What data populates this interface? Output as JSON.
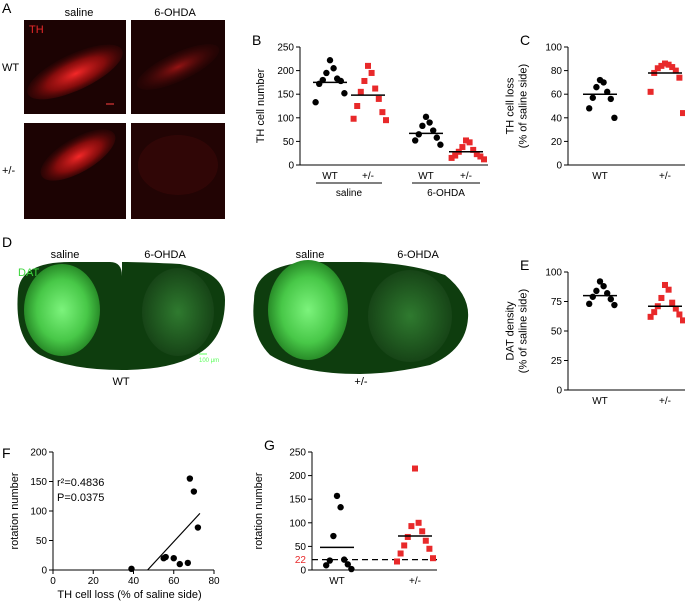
{
  "panels": {
    "A": {
      "letter": "A",
      "label_marker": "TH",
      "col_labels": [
        "saline",
        "6-OHDA"
      ],
      "row_labels": [
        "WT",
        "+/-"
      ]
    },
    "D": {
      "letter": "D",
      "label_marker": "DAT",
      "col_labels": [
        "saline",
        "6-OHDA",
        "saline",
        "6-OHDA"
      ],
      "genotype_labels": [
        "WT",
        "+/-"
      ],
      "scale_bar": "100 μm"
    }
  },
  "chart_data": [
    {
      "id": "B",
      "letter": "B",
      "type": "scatter",
      "ylabel": "TH cell number",
      "ylim": [
        0,
        250
      ],
      "yticks": [
        0,
        50,
        100,
        150,
        200,
        250
      ],
      "groups": [
        "WT",
        "+/-",
        "WT",
        "+/-"
      ],
      "group_labels": [
        "saline",
        "6-OHDA"
      ],
      "series": [
        {
          "group": "WT saline",
          "color": "#000000",
          "shape": "circle",
          "mean": 175,
          "values": [
            222,
            205,
            195,
            183,
            180,
            178,
            172,
            152,
            133
          ]
        },
        {
          "group": "+/- saline",
          "color": "#e8292a",
          "shape": "square",
          "mean": 148,
          "values": [
            210,
            195,
            178,
            162,
            155,
            140,
            125,
            112,
            98,
            95
          ]
        },
        {
          "group": "WT 6-OHDA",
          "color": "#000000",
          "shape": "circle",
          "mean": 67,
          "values": [
            102,
            90,
            83,
            73,
            65,
            58,
            52,
            43
          ]
        },
        {
          "group": "+/- 6-OHDA",
          "color": "#e8292a",
          "shape": "square",
          "mean": 28,
          "values": [
            52,
            48,
            38,
            32,
            28,
            23,
            20,
            18,
            15,
            12
          ]
        }
      ]
    },
    {
      "id": "C",
      "letter": "C",
      "type": "scatter",
      "ylabel": "TH cell loss\n(% of saline side)",
      "ylim": [
        0,
        100
      ],
      "yticks": [
        0,
        20,
        40,
        60,
        80,
        100
      ],
      "groups": [
        "WT",
        "+/-"
      ],
      "series": [
        {
          "group": "WT",
          "color": "#000000",
          "shape": "circle",
          "mean": 60,
          "values": [
            72,
            70,
            66,
            62,
            57,
            56,
            48,
            40
          ]
        },
        {
          "group": "+/-",
          "color": "#e8292a",
          "shape": "square",
          "mean": 78,
          "values": [
            86,
            85,
            84,
            83,
            82,
            80,
            78,
            74,
            62,
            44
          ]
        }
      ]
    },
    {
      "id": "E",
      "letter": "E",
      "type": "scatter",
      "ylabel": "DAT density\n(% of saline side)",
      "ylim": [
        0,
        100
      ],
      "yticks": [
        0,
        25,
        50,
        75,
        100
      ],
      "groups": [
        "WT",
        "+/-"
      ],
      "series": [
        {
          "group": "WT",
          "color": "#000000",
          "shape": "circle",
          "mean": 80,
          "values": [
            92,
            88,
            84,
            82,
            79,
            77,
            73,
            72
          ]
        },
        {
          "group": "+/-",
          "color": "#e8292a",
          "shape": "square",
          "mean": 71,
          "values": [
            89,
            85,
            78,
            74,
            71,
            69,
            66,
            64,
            62,
            59
          ]
        }
      ]
    },
    {
      "id": "F",
      "letter": "F",
      "type": "scatter",
      "xlabel": "TH cell loss (% of saline side)",
      "ylabel": "rotation number",
      "xlim": [
        0,
        80
      ],
      "ylim": [
        0,
        200
      ],
      "xticks": [
        0,
        20,
        40,
        60,
        80
      ],
      "yticks": [
        0,
        50,
        100,
        150,
        200
      ],
      "annotations": [
        "r²=0.4836",
        "P=0.0375"
      ],
      "points": [
        {
          "x": 39,
          "y": 2
        },
        {
          "x": 55,
          "y": 20
        },
        {
          "x": 56,
          "y": 22
        },
        {
          "x": 60,
          "y": 20
        },
        {
          "x": 63,
          "y": 10
        },
        {
          "x": 68,
          "y": 155
        },
        {
          "x": 70,
          "y": 133
        },
        {
          "x": 72,
          "y": 72
        },
        {
          "x": 67,
          "y": 12
        }
      ],
      "fit_line": {
        "x": [
          47,
          73
        ],
        "y": [
          0,
          96
        ]
      }
    },
    {
      "id": "G",
      "letter": "G",
      "type": "scatter",
      "ylabel": "rotation number",
      "ylim": [
        0,
        250
      ],
      "yticks": [
        0,
        50,
        100,
        150,
        200,
        250
      ],
      "groups": [
        "WT",
        "+/-"
      ],
      "threshold": {
        "value": 22,
        "label": "22",
        "color": "#e8292a"
      },
      "series": [
        {
          "group": "WT",
          "color": "#000000",
          "shape": "circle",
          "mean": 48,
          "values": [
            157,
            133,
            72,
            22,
            20,
            12,
            10,
            2
          ]
        },
        {
          "group": "+/-",
          "color": "#e8292a",
          "shape": "square",
          "mean": 72,
          "values": [
            215,
            100,
            93,
            82,
            70,
            62,
            52,
            45,
            35,
            25,
            18
          ]
        }
      ]
    }
  ]
}
